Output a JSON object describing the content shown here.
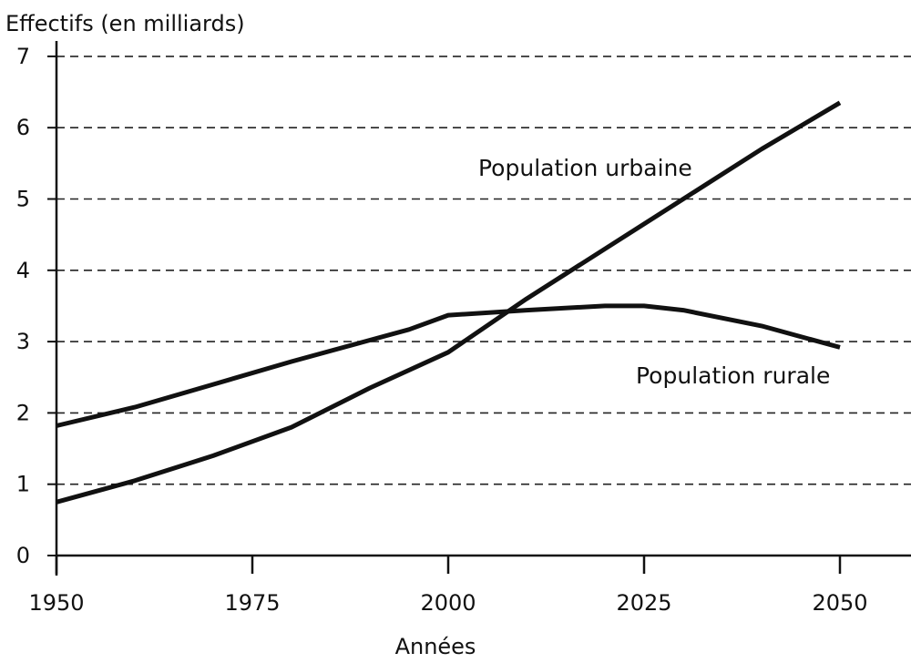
{
  "chart_data": {
    "type": "line",
    "title": "",
    "ylabel": "Effectifs (en milliards)",
    "xlabel": "Années",
    "xticks": [
      "1950",
      "1975",
      "2000",
      "2025",
      "2050"
    ],
    "yticks": [
      "0",
      "1",
      "2",
      "3",
      "4",
      "5",
      "6",
      "7"
    ],
    "xlim": [
      1950,
      2060
    ],
    "ylim": [
      0,
      7
    ],
    "grid": "horizontal-dashed",
    "series": [
      {
        "name": "Population urbaine",
        "x": [
          1950,
          1960,
          1970,
          1980,
          1990,
          2000,
          2010,
          2020,
          2030,
          2040,
          2050
        ],
        "values": [
          0.75,
          1.05,
          1.4,
          1.8,
          2.35,
          2.85,
          3.6,
          4.3,
          5.0,
          5.7,
          6.35
        ]
      },
      {
        "name": "Population rurale",
        "x": [
          1950,
          1960,
          1970,
          1980,
          1990,
          1995,
          2000,
          2010,
          2020,
          2025,
          2030,
          2040,
          2050
        ],
        "values": [
          1.82,
          2.08,
          2.4,
          2.72,
          3.02,
          3.17,
          3.37,
          3.44,
          3.5,
          3.5,
          3.44,
          3.22,
          2.92
        ]
      }
    ]
  }
}
